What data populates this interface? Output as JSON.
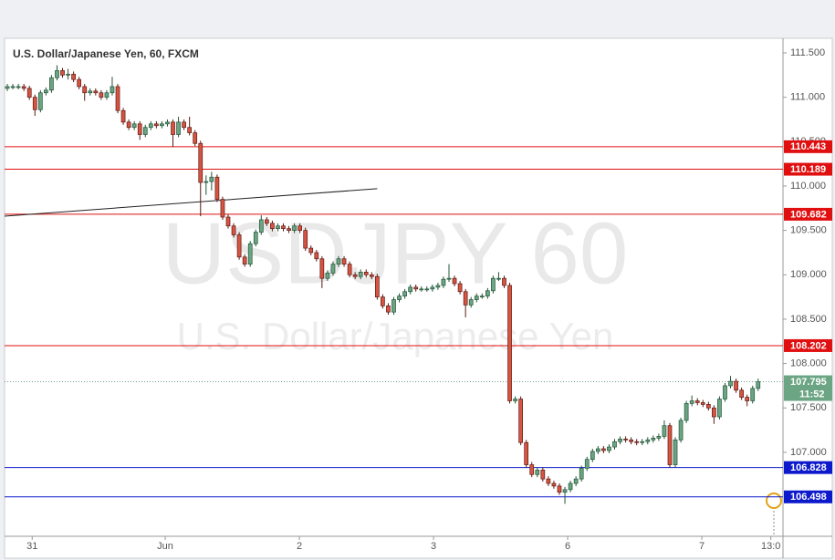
{
  "chart_data": {
    "type": "candlestick",
    "title": "U.S. Dollar/Japanese Yen, 60, FXCM",
    "watermark": "USDJPY  60",
    "watermark_subtitle": "U.S. Dollar/Japanese Yen",
    "up_color": "#6ba583",
    "up_border": "#225437",
    "down_color": "#d75442",
    "down_border": "#5b1a13",
    "xlim": [
      -0.5,
      140.5
    ],
    "xticks": [
      {
        "value": 4.5,
        "label": "31"
      },
      {
        "value": 28.6,
        "label": "Jun"
      },
      {
        "value": 52.9,
        "label": "2"
      },
      {
        "value": 77.2,
        "label": "3"
      },
      {
        "value": 101.5,
        "label": "6"
      },
      {
        "value": 125.8,
        "label": "7"
      },
      {
        "value": 138.3,
        "label": "13:0"
      }
    ],
    "ylim": [
      106.054,
      111.664
    ],
    "yticks": [
      {
        "value": 107,
        "label": "107.000"
      },
      {
        "value": 107.5,
        "label": "107.500"
      },
      {
        "value": 108,
        "label": "108.000"
      },
      {
        "value": 108.5,
        "label": "108.500"
      },
      {
        "value": 109,
        "label": "109.000"
      },
      {
        "value": 109.5,
        "label": "109.500"
      },
      {
        "value": 110,
        "label": "110.000"
      },
      {
        "value": 110.5,
        "label": "110.500"
      },
      {
        "value": 111,
        "label": "111.000"
      },
      {
        "value": 111.5,
        "label": "111.500"
      }
    ],
    "levels": [
      {
        "value": 110.443,
        "color": "#e01010"
      },
      {
        "value": 110.189,
        "color": "#e01010"
      },
      {
        "value": 109.682,
        "color": "#e01010"
      },
      {
        "value": 108.202,
        "color": "#e01010"
      },
      {
        "value": 106.828,
        "color": "#0d1acc"
      },
      {
        "value": 106.498,
        "color": "#0d1acc"
      }
    ],
    "last_price": 107.795,
    "last_color": "#6ba583",
    "countdown": "11:52",
    "trendline": {
      "x": [
        -0.5,
        67
      ],
      "y": [
        109.66,
        109.97
      ],
      "color": "#222222"
    },
    "open": [
      111.1,
      111.12,
      111.12,
      111.12,
      111.1,
      111.0,
      110.86,
      111.05,
      111.08,
      111.22,
      111.3,
      111.25,
      111.26,
      111.2,
      111.12,
      111.05,
      111.07,
      111.05,
      111.0,
      111.05,
      111.12,
      110.85,
      110.72,
      110.66,
      110.7,
      110.58,
      110.66,
      110.7,
      110.68,
      110.7,
      110.72,
      110.58,
      110.72,
      110.66,
      110.6,
      110.48,
      110.04,
      110.05,
      110.1,
      109.85,
      109.65,
      109.55,
      109.45,
      109.2,
      109.12,
      109.35,
      109.48,
      109.62,
      109.58,
      109.52,
      109.55,
      109.52,
      109.5,
      109.55,
      109.5,
      109.3,
      109.25,
      109.18,
      108.96,
      109.02,
      109.12,
      109.18,
      109.12,
      109.0,
      108.98,
      109.03,
      109.0,
      108.98,
      108.75,
      108.65,
      108.58,
      108.72,
      108.76,
      108.81,
      108.86,
      108.84,
      108.84,
      108.84,
      108.86,
      108.88,
      108.95,
      108.96,
      108.9,
      108.81,
      108.66,
      108.72,
      108.76,
      108.76,
      108.82,
      108.96,
      108.96,
      108.88,
      107.58,
      107.6,
      107.11,
      106.86,
      106.75,
      106.8,
      106.7,
      106.65,
      106.62,
      106.55,
      106.58,
      106.65,
      106.7,
      106.82,
      106.92,
      107.01,
      107.04,
      107.02,
      107.06,
      107.12,
      107.15,
      107.14,
      107.12,
      107.11,
      107.12,
      107.14,
      107.16,
      107.18,
      107.3,
      106.86,
      107.14,
      107.36,
      107.55,
      107.58,
      107.56,
      107.54,
      107.5,
      107.4,
      107.6,
      107.75,
      107.8,
      107.7,
      107.62,
      107.58,
      107.72
    ],
    "high": [
      111.15,
      111.15,
      111.15,
      111.15,
      111.13,
      111.03,
      111.08,
      111.11,
      111.25,
      111.36,
      111.33,
      111.32,
      111.29,
      111.23,
      111.15,
      111.1,
      111.1,
      111.08,
      111.08,
      111.23,
      111.15,
      110.88,
      110.75,
      110.73,
      110.73,
      110.69,
      110.73,
      110.73,
      110.73,
      110.75,
      110.75,
      110.78,
      110.75,
      110.78,
      110.63,
      110.51,
      110.12,
      110.16,
      110.13,
      109.88,
      109.68,
      109.58,
      109.48,
      109.23,
      109.38,
      109.51,
      109.67,
      109.65,
      109.61,
      109.58,
      109.58,
      109.55,
      109.58,
      109.58,
      109.53,
      109.33,
      109.28,
      109.21,
      109.05,
      109.15,
      109.21,
      109.21,
      109.15,
      109.03,
      109.06,
      109.06,
      109.03,
      109.01,
      108.78,
      108.68,
      108.75,
      108.79,
      108.84,
      108.89,
      108.89,
      108.87,
      108.87,
      108.89,
      108.91,
      108.98,
      109.12,
      108.99,
      108.93,
      108.84,
      108.75,
      108.79,
      108.79,
      108.85,
      108.99,
      109.03,
      108.99,
      108.91,
      107.63,
      107.63,
      107.14,
      106.89,
      106.83,
      106.83,
      106.73,
      106.68,
      106.65,
      106.61,
      106.68,
      106.73,
      106.85,
      106.95,
      107.04,
      107.07,
      107.07,
      107.09,
      107.15,
      107.18,
      107.18,
      107.17,
      107.15,
      107.15,
      107.17,
      107.19,
      107.21,
      107.36,
      107.33,
      107.17,
      107.39,
      107.58,
      107.64,
      107.61,
      107.59,
      107.57,
      107.53,
      107.63,
      107.78,
      107.86,
      107.83,
      107.73,
      107.65,
      107.75,
      107.83
    ],
    "low": [
      111.07,
      111.09,
      111.09,
      111.07,
      110.97,
      110.79,
      110.83,
      111.02,
      111.05,
      111.19,
      111.22,
      111.2,
      111.17,
      111.09,
      110.96,
      111.02,
      111.02,
      110.97,
      110.97,
      111.02,
      110.82,
      110.69,
      110.63,
      110.63,
      110.52,
      110.55,
      110.63,
      110.65,
      110.65,
      110.67,
      110.44,
      110.55,
      110.63,
      110.57,
      110.45,
      109.66,
      109.9,
      109.95,
      109.82,
      109.62,
      109.52,
      109.42,
      109.17,
      109.09,
      109.09,
      109.32,
      109.45,
      109.55,
      109.49,
      109.49,
      109.49,
      109.47,
      109.47,
      109.47,
      109.27,
      109.22,
      109.15,
      108.85,
      108.93,
      108.99,
      109.09,
      109.09,
      108.97,
      108.95,
      108.95,
      108.97,
      108.95,
      108.72,
      108.62,
      108.55,
      108.55,
      108.69,
      108.73,
      108.78,
      108.81,
      108.81,
      108.81,
      108.81,
      108.83,
      108.85,
      108.92,
      108.87,
      108.78,
      108.52,
      108.63,
      108.69,
      108.73,
      108.73,
      108.79,
      108.93,
      108.85,
      107.55,
      107.55,
      107.08,
      106.83,
      106.72,
      106.72,
      106.67,
      106.62,
      106.59,
      106.52,
      106.42,
      106.55,
      106.62,
      106.67,
      106.79,
      106.89,
      106.98,
      106.99,
      106.99,
      107.03,
      107.09,
      107.11,
      107.09,
      107.08,
      107.08,
      107.09,
      107.11,
      107.13,
      107.15,
      106.83,
      106.83,
      107.11,
      107.33,
      107.52,
      107.53,
      107.51,
      107.47,
      107.32,
      107.37,
      107.57,
      107.72,
      107.67,
      107.59,
      107.52,
      107.55,
      107.69
    ],
    "close": [
      111.12,
      111.12,
      111.12,
      111.1,
      111.0,
      110.86,
      111.05,
      111.08,
      111.22,
      111.3,
      111.25,
      111.26,
      111.2,
      111.12,
      111.05,
      111.07,
      111.05,
      111.0,
      111.05,
      111.12,
      110.85,
      110.72,
      110.66,
      110.7,
      110.58,
      110.66,
      110.7,
      110.68,
      110.7,
      110.72,
      110.58,
      110.72,
      110.66,
      110.6,
      110.48,
      110.04,
      110.05,
      110.1,
      109.85,
      109.65,
      109.55,
      109.45,
      109.2,
      109.12,
      109.35,
      109.48,
      109.62,
      109.58,
      109.52,
      109.55,
      109.52,
      109.5,
      109.55,
      109.5,
      109.3,
      109.25,
      109.18,
      108.96,
      109.02,
      109.12,
      109.18,
      109.12,
      109.0,
      108.98,
      109.03,
      109.0,
      108.98,
      108.75,
      108.65,
      108.58,
      108.72,
      108.76,
      108.81,
      108.86,
      108.84,
      108.84,
      108.84,
      108.86,
      108.88,
      108.95,
      108.96,
      108.9,
      108.81,
      108.66,
      108.72,
      108.76,
      108.76,
      108.82,
      108.96,
      108.96,
      108.88,
      107.58,
      107.6,
      107.11,
      106.86,
      106.75,
      106.8,
      106.7,
      106.65,
      106.62,
      106.55,
      106.58,
      106.65,
      106.7,
      106.82,
      106.92,
      107.01,
      107.04,
      107.02,
      107.06,
      107.12,
      107.15,
      107.14,
      107.12,
      107.11,
      107.12,
      107.14,
      107.16,
      107.18,
      107.3,
      106.86,
      107.14,
      107.36,
      107.55,
      107.58,
      107.56,
      107.54,
      107.5,
      107.4,
      107.6,
      107.75,
      107.8,
      107.7,
      107.62,
      107.58,
      107.72,
      107.795
    ]
  }
}
